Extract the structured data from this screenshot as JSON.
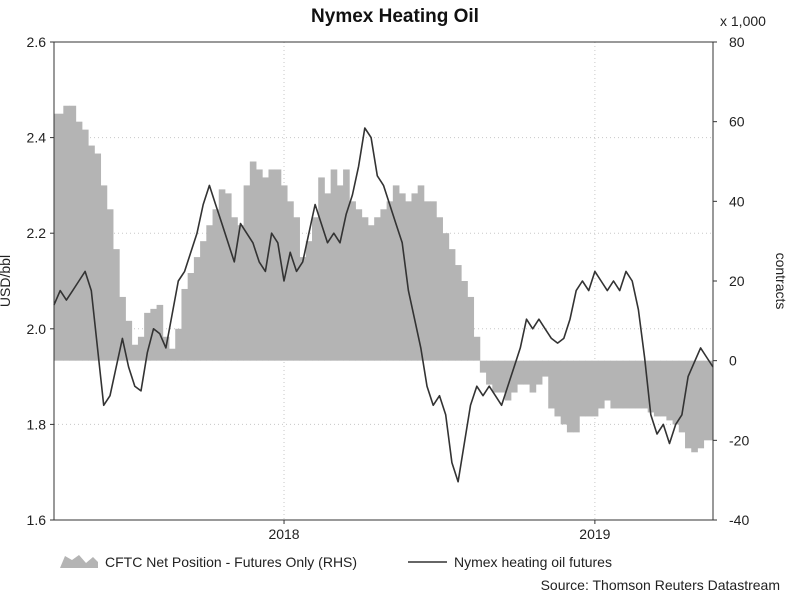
{
  "chart_data": {
    "type": "area+line",
    "title": "Nymex Heating Oil",
    "ylabel_left": "USD/bbl",
    "ylabel_right": "contracts",
    "right_axis_multiplier": "x 1,000",
    "source": "Source: Thomson Reuters Datastream",
    "left_ylim": [
      1.6,
      2.6
    ],
    "left_yticks": [
      "1.6",
      "1.8",
      "2.0",
      "2.2",
      "2.4",
      "2.6"
    ],
    "right_ylim": [
      -40,
      80
    ],
    "right_yticks": [
      "-40",
      "-20",
      "0",
      "20",
      "40",
      "60",
      "80"
    ],
    "xlim": [
      2017.26,
      2019.38
    ],
    "xticks": [
      {
        "label": "2018",
        "position": 2018.0
      },
      {
        "label": "2019",
        "position": 2019.0
      }
    ],
    "grid": true,
    "legend_placement": "bottom",
    "series": [
      {
        "name": "CFTC Net Position - Futures Only (RHS)",
        "kind": "area",
        "axis": "right",
        "color": "#b4b4b4",
        "x": [
          2017.26,
          2017.29,
          2017.31,
          2017.33,
          2017.35,
          2017.37,
          2017.39,
          2017.41,
          2017.43,
          2017.45,
          2017.47,
          2017.49,
          2017.51,
          2017.53,
          2017.55,
          2017.57,
          2017.59,
          2017.61,
          2017.63,
          2017.65,
          2017.67,
          2017.69,
          2017.71,
          2017.73,
          2017.75,
          2017.77,
          2017.79,
          2017.81,
          2017.83,
          2017.85,
          2017.87,
          2017.89,
          2017.91,
          2017.93,
          2017.95,
          2017.97,
          2017.99,
          2018.01,
          2018.03,
          2018.05,
          2018.07,
          2018.09,
          2018.11,
          2018.13,
          2018.15,
          2018.17,
          2018.19,
          2018.21,
          2018.23,
          2018.25,
          2018.27,
          2018.29,
          2018.31,
          2018.33,
          2018.35,
          2018.37,
          2018.39,
          2018.41,
          2018.43,
          2018.45,
          2018.47,
          2018.49,
          2018.51,
          2018.53,
          2018.55,
          2018.57,
          2018.59,
          2018.61,
          2018.63,
          2018.65,
          2018.67,
          2018.69,
          2018.71,
          2018.73,
          2018.75,
          2018.77,
          2018.79,
          2018.81,
          2018.83,
          2018.85,
          2018.87,
          2018.89,
          2018.91,
          2018.93,
          2018.95,
          2018.97,
          2018.99,
          2019.01,
          2019.03,
          2019.05,
          2019.07,
          2019.09,
          2019.11,
          2019.13,
          2019.15,
          2019.17,
          2019.19,
          2019.21,
          2019.23,
          2019.25,
          2019.27,
          2019.29,
          2019.31,
          2019.33,
          2019.35,
          2019.38
        ],
        "values": [
          62,
          64,
          64,
          60,
          58,
          54,
          52,
          44,
          38,
          28,
          16,
          10,
          4,
          6,
          12,
          13,
          14,
          6,
          3,
          8,
          18,
          22,
          26,
          30,
          34,
          38,
          43,
          42,
          36,
          34,
          44,
          50,
          48,
          46,
          48,
          48,
          44,
          40,
          36,
          26,
          30,
          36,
          46,
          42,
          48,
          44,
          48,
          40,
          38,
          36,
          34,
          36,
          38,
          40,
          44,
          42,
          40,
          42,
          44,
          40,
          40,
          36,
          32,
          28,
          24,
          20,
          16,
          6,
          -3,
          -6,
          -8,
          -8,
          -10,
          -8,
          -6,
          -6,
          -8,
          -6,
          -4,
          -12,
          -14,
          -16,
          -18,
          -18,
          -14,
          -14,
          -14,
          -12,
          -10,
          -12,
          -12,
          -12,
          -12,
          -12,
          -12,
          -13,
          -14,
          -14,
          -15,
          -16,
          -18,
          -22,
          -23,
          -22,
          -20,
          -16
        ]
      },
      {
        "name": "Nymex heating oil futures",
        "kind": "line",
        "axis": "left",
        "color": "#333333",
        "x": [
          2017.26,
          2017.28,
          2017.3,
          2017.32,
          2017.34,
          2017.36,
          2017.38,
          2017.4,
          2017.42,
          2017.44,
          2017.46,
          2017.48,
          2017.5,
          2017.52,
          2017.54,
          2017.56,
          2017.58,
          2017.6,
          2017.62,
          2017.64,
          2017.66,
          2017.68,
          2017.7,
          2017.72,
          2017.74,
          2017.76,
          2017.78,
          2017.8,
          2017.82,
          2017.84,
          2017.86,
          2017.88,
          2017.9,
          2017.92,
          2017.94,
          2017.96,
          2017.98,
          2018.0,
          2018.02,
          2018.04,
          2018.06,
          2018.08,
          2018.1,
          2018.12,
          2018.14,
          2018.16,
          2018.18,
          2018.2,
          2018.22,
          2018.24,
          2018.26,
          2018.28,
          2018.3,
          2018.32,
          2018.34,
          2018.36,
          2018.38,
          2018.4,
          2018.42,
          2018.44,
          2018.46,
          2018.48,
          2018.5,
          2018.52,
          2018.54,
          2018.56,
          2018.58,
          2018.6,
          2018.62,
          2018.64,
          2018.66,
          2018.68,
          2018.7,
          2018.72,
          2018.74,
          2018.76,
          2018.78,
          2018.8,
          2018.82,
          2018.84,
          2018.86,
          2018.88,
          2018.9,
          2018.92,
          2018.94,
          2018.96,
          2018.98,
          2019.0,
          2019.02,
          2019.04,
          2019.06,
          2019.08,
          2019.1,
          2019.12,
          2019.14,
          2019.16,
          2019.18,
          2019.2,
          2019.22,
          2019.24,
          2019.26,
          2019.28,
          2019.3,
          2019.32,
          2019.34,
          2019.36,
          2019.38
        ],
        "values": [
          2.05,
          2.08,
          2.06,
          2.08,
          2.1,
          2.12,
          2.08,
          1.96,
          1.84,
          1.86,
          1.92,
          1.98,
          1.92,
          1.88,
          1.87,
          1.95,
          2.0,
          1.99,
          1.96,
          2.03,
          2.1,
          2.12,
          2.16,
          2.2,
          2.26,
          2.3,
          2.26,
          2.22,
          2.18,
          2.14,
          2.22,
          2.2,
          2.18,
          2.14,
          2.12,
          2.2,
          2.18,
          2.1,
          2.16,
          2.12,
          2.14,
          2.2,
          2.26,
          2.22,
          2.18,
          2.2,
          2.18,
          2.24,
          2.28,
          2.34,
          2.42,
          2.4,
          2.32,
          2.3,
          2.26,
          2.22,
          2.18,
          2.08,
          2.02,
          1.96,
          1.88,
          1.84,
          1.86,
          1.82,
          1.72,
          1.68,
          1.76,
          1.84,
          1.88,
          1.86,
          1.88,
          1.86,
          1.84,
          1.88,
          1.92,
          1.96,
          2.02,
          2.0,
          2.02,
          2.0,
          1.98,
          1.97,
          1.98,
          2.02,
          2.08,
          2.1,
          2.08,
          2.12,
          2.1,
          2.08,
          2.1,
          2.08,
          2.12,
          2.1,
          2.04,
          1.94,
          1.82,
          1.78,
          1.8,
          1.76,
          1.8,
          1.82,
          1.9,
          1.93,
          1.96,
          1.94,
          1.92
        ]
      }
    ]
  }
}
